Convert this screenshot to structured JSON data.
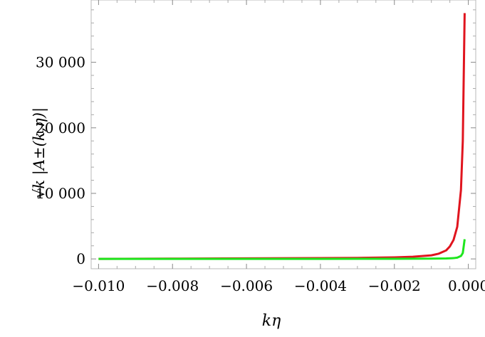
{
  "chart_data": {
    "type": "line",
    "xlabel": "kη",
    "ylabel": "√k |A±(k,η)|",
    "xlim": [
      -0.0102,
      0.0002
    ],
    "ylim": [
      -1500,
      39500
    ],
    "x_ticks": [
      -0.01,
      -0.008,
      -0.006,
      -0.004,
      -0.002,
      0.0
    ],
    "x_tick_labels": [
      "−0.010",
      "−0.008",
      "−0.006",
      "−0.004",
      "−0.002",
      "0.000"
    ],
    "y_ticks": [
      0,
      10000,
      20000,
      30000
    ],
    "y_tick_labels": [
      "0",
      "10 000",
      "20 000",
      "30 000"
    ],
    "grid": false,
    "series": [
      {
        "color": "#e0141e",
        "x": [
          -0.01,
          -0.008,
          -0.006,
          -0.004,
          -0.003,
          -0.002,
          -0.0015,
          -0.001,
          -0.0008,
          -0.0006,
          -0.0005,
          -0.0004,
          -0.0003,
          -0.0002,
          -0.00015,
          -0.0001
        ],
        "values": [
          0,
          40,
          80,
          120,
          160,
          240,
          330,
          550,
          800,
          1300,
          1900,
          2900,
          4900,
          10500,
          18000,
          37500
        ]
      },
      {
        "color": "#1ee61e",
        "x": [
          -0.01,
          -0.008,
          -0.006,
          -0.004,
          -0.002,
          -0.001,
          -0.0006,
          -0.0004,
          -0.0003,
          -0.0002,
          -0.00015,
          -0.0001
        ],
        "values": [
          0,
          0,
          5,
          10,
          20,
          40,
          70,
          120,
          200,
          450,
          900,
          3000
        ]
      }
    ]
  }
}
